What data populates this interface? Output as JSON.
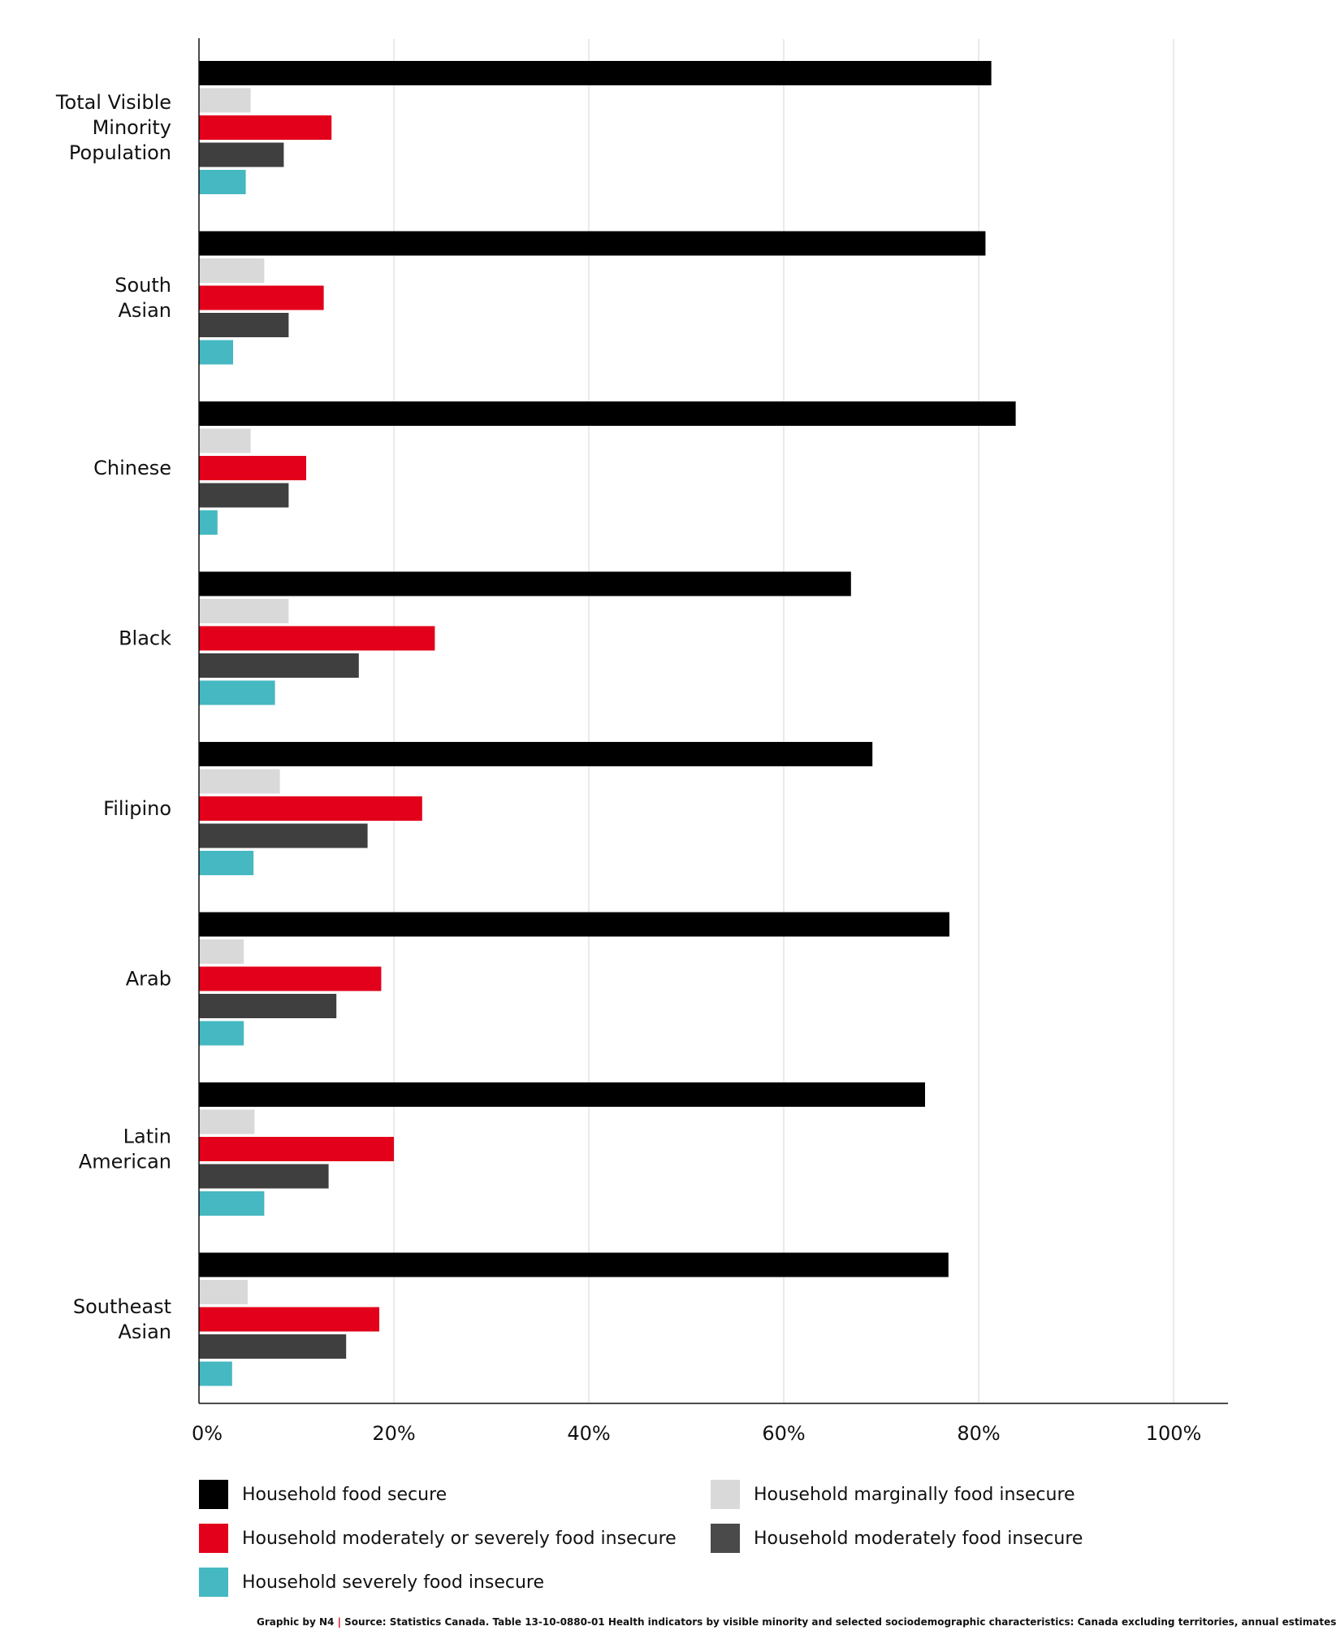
{
  "chart_data": {
    "type": "bar",
    "orientation": "horizontal",
    "categories": [
      [
        "Total Visible",
        "Minority",
        "Population"
      ],
      [
        "South",
        "Asian"
      ],
      [
        "Chinese"
      ],
      [
        "Black"
      ],
      [
        "Filipino"
      ],
      [
        "Arab"
      ],
      [
        "Latin",
        "American"
      ],
      [
        "Southeast",
        "Asian"
      ]
    ],
    "series": [
      {
        "name": "Household food secure",
        "color": "#000000",
        "values": [
          81.3,
          80.7,
          83.8,
          66.9,
          69.1,
          77.0,
          74.5,
          76.9
        ]
      },
      {
        "name": "Household marginally food insecure",
        "color": "#d9d9d9",
        "values": [
          5.3,
          6.7,
          5.3,
          9.2,
          8.3,
          4.6,
          5.7,
          5.0
        ]
      },
      {
        "name": "Household moderately or severely food insecure",
        "color": "#e2001a",
        "values": [
          13.6,
          12.8,
          11.0,
          24.2,
          22.9,
          18.7,
          20.0,
          18.5
        ]
      },
      {
        "name": "Household moderately food insecure",
        "color": "#3f3f3f",
        "values": [
          8.7,
          9.2,
          9.2,
          16.4,
          17.3,
          14.1,
          13.3,
          15.1
        ]
      },
      {
        "name": "Household severely food insecure",
        "color": "#45b8c1",
        "values": [
          4.8,
          3.5,
          1.9,
          7.8,
          5.6,
          4.6,
          6.7,
          3.4
        ]
      }
    ],
    "xlim": [
      0,
      105
    ],
    "xticks": [
      0,
      20,
      40,
      60,
      80,
      100
    ],
    "xtick_labels": [
      "0%",
      "20%",
      "40%",
      "60%",
      "80%",
      "100%"
    ],
    "grid": true,
    "legend_position": "bottom"
  },
  "footer": {
    "credit": "Graphic by N4",
    "separator": "|",
    "source": "Source: Statistics Canada. Table 13-10-0880-01  Health indicators by visible minority and selected sociodemographic characteristics: Canada excluding territories, annual estimates"
  }
}
